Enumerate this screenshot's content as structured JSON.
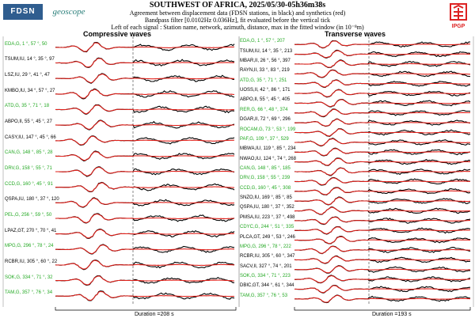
{
  "header": {
    "title": "SOUTHWEST OF AFRICA, 2025/05/30-05h36m38s",
    "line1": "Agreement between displacement data (FDSN stations, in black) and synthetics (red)",
    "line2": "Bandpass filter [0.0102Hz 0.036Hz], fit evaluated before the vertical tick",
    "line3": "Left of each signal : Station name, network, azimuth, distance, max in the fitted window (in 10⁻⁸m)"
  },
  "logos": {
    "fdsn": "FDSN",
    "geoscope": "geoscope",
    "ipgp": "IPGP"
  },
  "colors": {
    "data": "#000000",
    "synthetic": "#e0201a",
    "green_label": "#22a822"
  },
  "chart_data": [
    {
      "type": "line",
      "title": "Compressive waves",
      "duration_label": "Duration =208 s",
      "stations": [
        {
          "label": "EDA,G, 1 °, 57 °, 50",
          "green": true
        },
        {
          "label": "TSUM,IU, 14 °, 35 °, 97",
          "green": false
        },
        {
          "label": "LSZ,IU, 29 °, 41 °, 47",
          "green": false
        },
        {
          "label": "KMBO,IU, 34 °, 57 °, 27",
          "green": false
        },
        {
          "label": "ATD,G, 35 °, 71 °, 18",
          "green": true
        },
        {
          "label": "ABPO,II, 55 °, 45 °, 27",
          "green": false
        },
        {
          "label": "CASY,IU, 147 °, 45 °, 66",
          "green": false
        },
        {
          "label": "CAN,G, 148 °, 85 °, 28",
          "green": true
        },
        {
          "label": "DRV,G, 158 °, 55 °, 71",
          "green": true
        },
        {
          "label": "CCD,G, 160 °, 45 °, 91",
          "green": true
        },
        {
          "label": "QSPA,IU, 180 °, 37 °, 120",
          "green": false
        },
        {
          "label": "PEL,G, 256 °, 59 °, 50",
          "green": true
        },
        {
          "label": "LPAZ,GT, 270 °, 70 °, 41",
          "green": false
        },
        {
          "label": "MPG,G, 296 °, 78 °, 24",
          "green": true
        },
        {
          "label": "RCBR,IU, 305 °, 60 °, 22",
          "green": false
        },
        {
          "label": "SOK,G, 334 °, 71 °, 32",
          "green": true
        },
        {
          "label": "TAM,G, 357 °, 76 °, 34",
          "green": true
        }
      ]
    },
    {
      "type": "line",
      "title": "Transverse waves",
      "duration_label": "Duration =193 s",
      "stations": [
        {
          "label": "EDA,G, 1 °, 57 °, 207",
          "green": true
        },
        {
          "label": "TSUM,IU, 14 °, 35 °, 213",
          "green": false
        },
        {
          "label": "MBAR,II, 26 °, 56 °, 397",
          "green": false
        },
        {
          "label": "RAYN,II, 33 °, 83 °, 219",
          "green": false
        },
        {
          "label": "ATD,G, 35 °, 71 °, 251",
          "green": true
        },
        {
          "label": "UOSS,II, 42 °, 86 °, 171",
          "green": false
        },
        {
          "label": "ABPO,II, 55 °, 45 °, 405",
          "green": false
        },
        {
          "label": "RER,G, 66 °, 48 °, 374",
          "green": true
        },
        {
          "label": "DGAR,II, 72 °, 69 °, 296",
          "green": false
        },
        {
          "label": "ROCAM,G, 73 °, 53 °, 199",
          "green": true
        },
        {
          "label": "PAF,G, 109 °, 37 °, 529",
          "green": true
        },
        {
          "label": "MBWA,IU, 119 °, 85 °, 234",
          "green": false
        },
        {
          "label": "NWAO,IU, 124 °, 74 °, 268",
          "green": false
        },
        {
          "label": "CAN,G, 148 °, 85 °, 185",
          "green": true
        },
        {
          "label": "DRV,G, 158 °, 55 °, 239",
          "green": true
        },
        {
          "label": "CCD,G, 160 °, 45 °, 308",
          "green": true
        },
        {
          "label": "SNZO,IU, 169 °, 85 °, 85",
          "green": false
        },
        {
          "label": "QSPA,IU, 180 °, 37 °, 352",
          "green": false
        },
        {
          "label": "PMSA,IU, 223 °, 37 °, 498",
          "green": false
        },
        {
          "label": "CDYC,G, 244 °, 51 °, 335",
          "green": true
        },
        {
          "label": "PLCA,GT, 249 °, 53 °, 246",
          "green": false
        },
        {
          "label": "MPG,G, 296 °, 78 °, 222",
          "green": true
        },
        {
          "label": "RCBR,IU, 305 °, 60 °, 347",
          "green": false
        },
        {
          "label": "SACV,II, 327 °, 74 °, 201",
          "green": false
        },
        {
          "label": "SOK,G, 334 °, 71 °, 223",
          "green": true
        },
        {
          "label": "DBIC,GT, 344 °, 61 °, 344",
          "green": false
        },
        {
          "label": "TAM,G, 357 °, 76 °, 53",
          "green": true
        }
      ]
    }
  ]
}
